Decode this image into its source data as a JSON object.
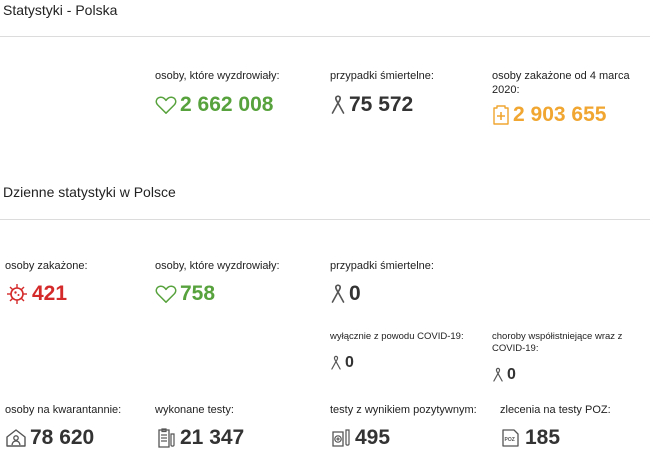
{
  "colors": {
    "green": "#57a23c",
    "dark": "#333333",
    "orange": "#f0a630",
    "red": "#d42a2a",
    "gray_icon": "#666666"
  },
  "poland": {
    "title": "Statystyki - Polska",
    "recovered": {
      "label": "osoby, które wyzdrowiały:",
      "value": "2 662 008",
      "icon": "heart-icon"
    },
    "deaths": {
      "label": "przypadki śmiertelne:",
      "value": "75 572",
      "icon": "ribbon-icon"
    },
    "infected": {
      "label": "osoby zakażone od 4 marca 2020:",
      "value": "2 903 655",
      "icon": "medical-card-icon"
    }
  },
  "daily": {
    "title": "Dzienne statystyki w Polsce",
    "infected": {
      "label": "osoby zakażone:",
      "value": "421",
      "icon": "virus-icon"
    },
    "recovered": {
      "label": "osoby, które wyzdrowiały:",
      "value": "758",
      "icon": "heart-icon"
    },
    "deaths": {
      "label": "przypadki śmiertelne:",
      "value": "0",
      "icon": "ribbon-icon"
    },
    "covid_only": {
      "label": "wyłącznie z powodu COVID-19:",
      "value": "0",
      "icon": "ribbon-icon"
    },
    "comorbid": {
      "label": "choroby współistniejące wraz z COVID-19:",
      "value": "0",
      "icon": "ribbon-icon"
    },
    "quarantine": {
      "label": "osoby na kwarantannie:",
      "value": "78 620",
      "icon": "house-person-icon"
    },
    "tests": {
      "label": "wykonane testy:",
      "value": "21 347",
      "icon": "clipboard-tests-icon"
    },
    "positive_tests": {
      "label": "testy z wynikiem pozytywnym:",
      "value": "495",
      "icon": "test-tube-positive-icon"
    },
    "poz_orders": {
      "label": "zlecenia na testy POZ:",
      "value": "185",
      "icon": "poz-document-icon",
      "icon_text": "POZ"
    }
  }
}
